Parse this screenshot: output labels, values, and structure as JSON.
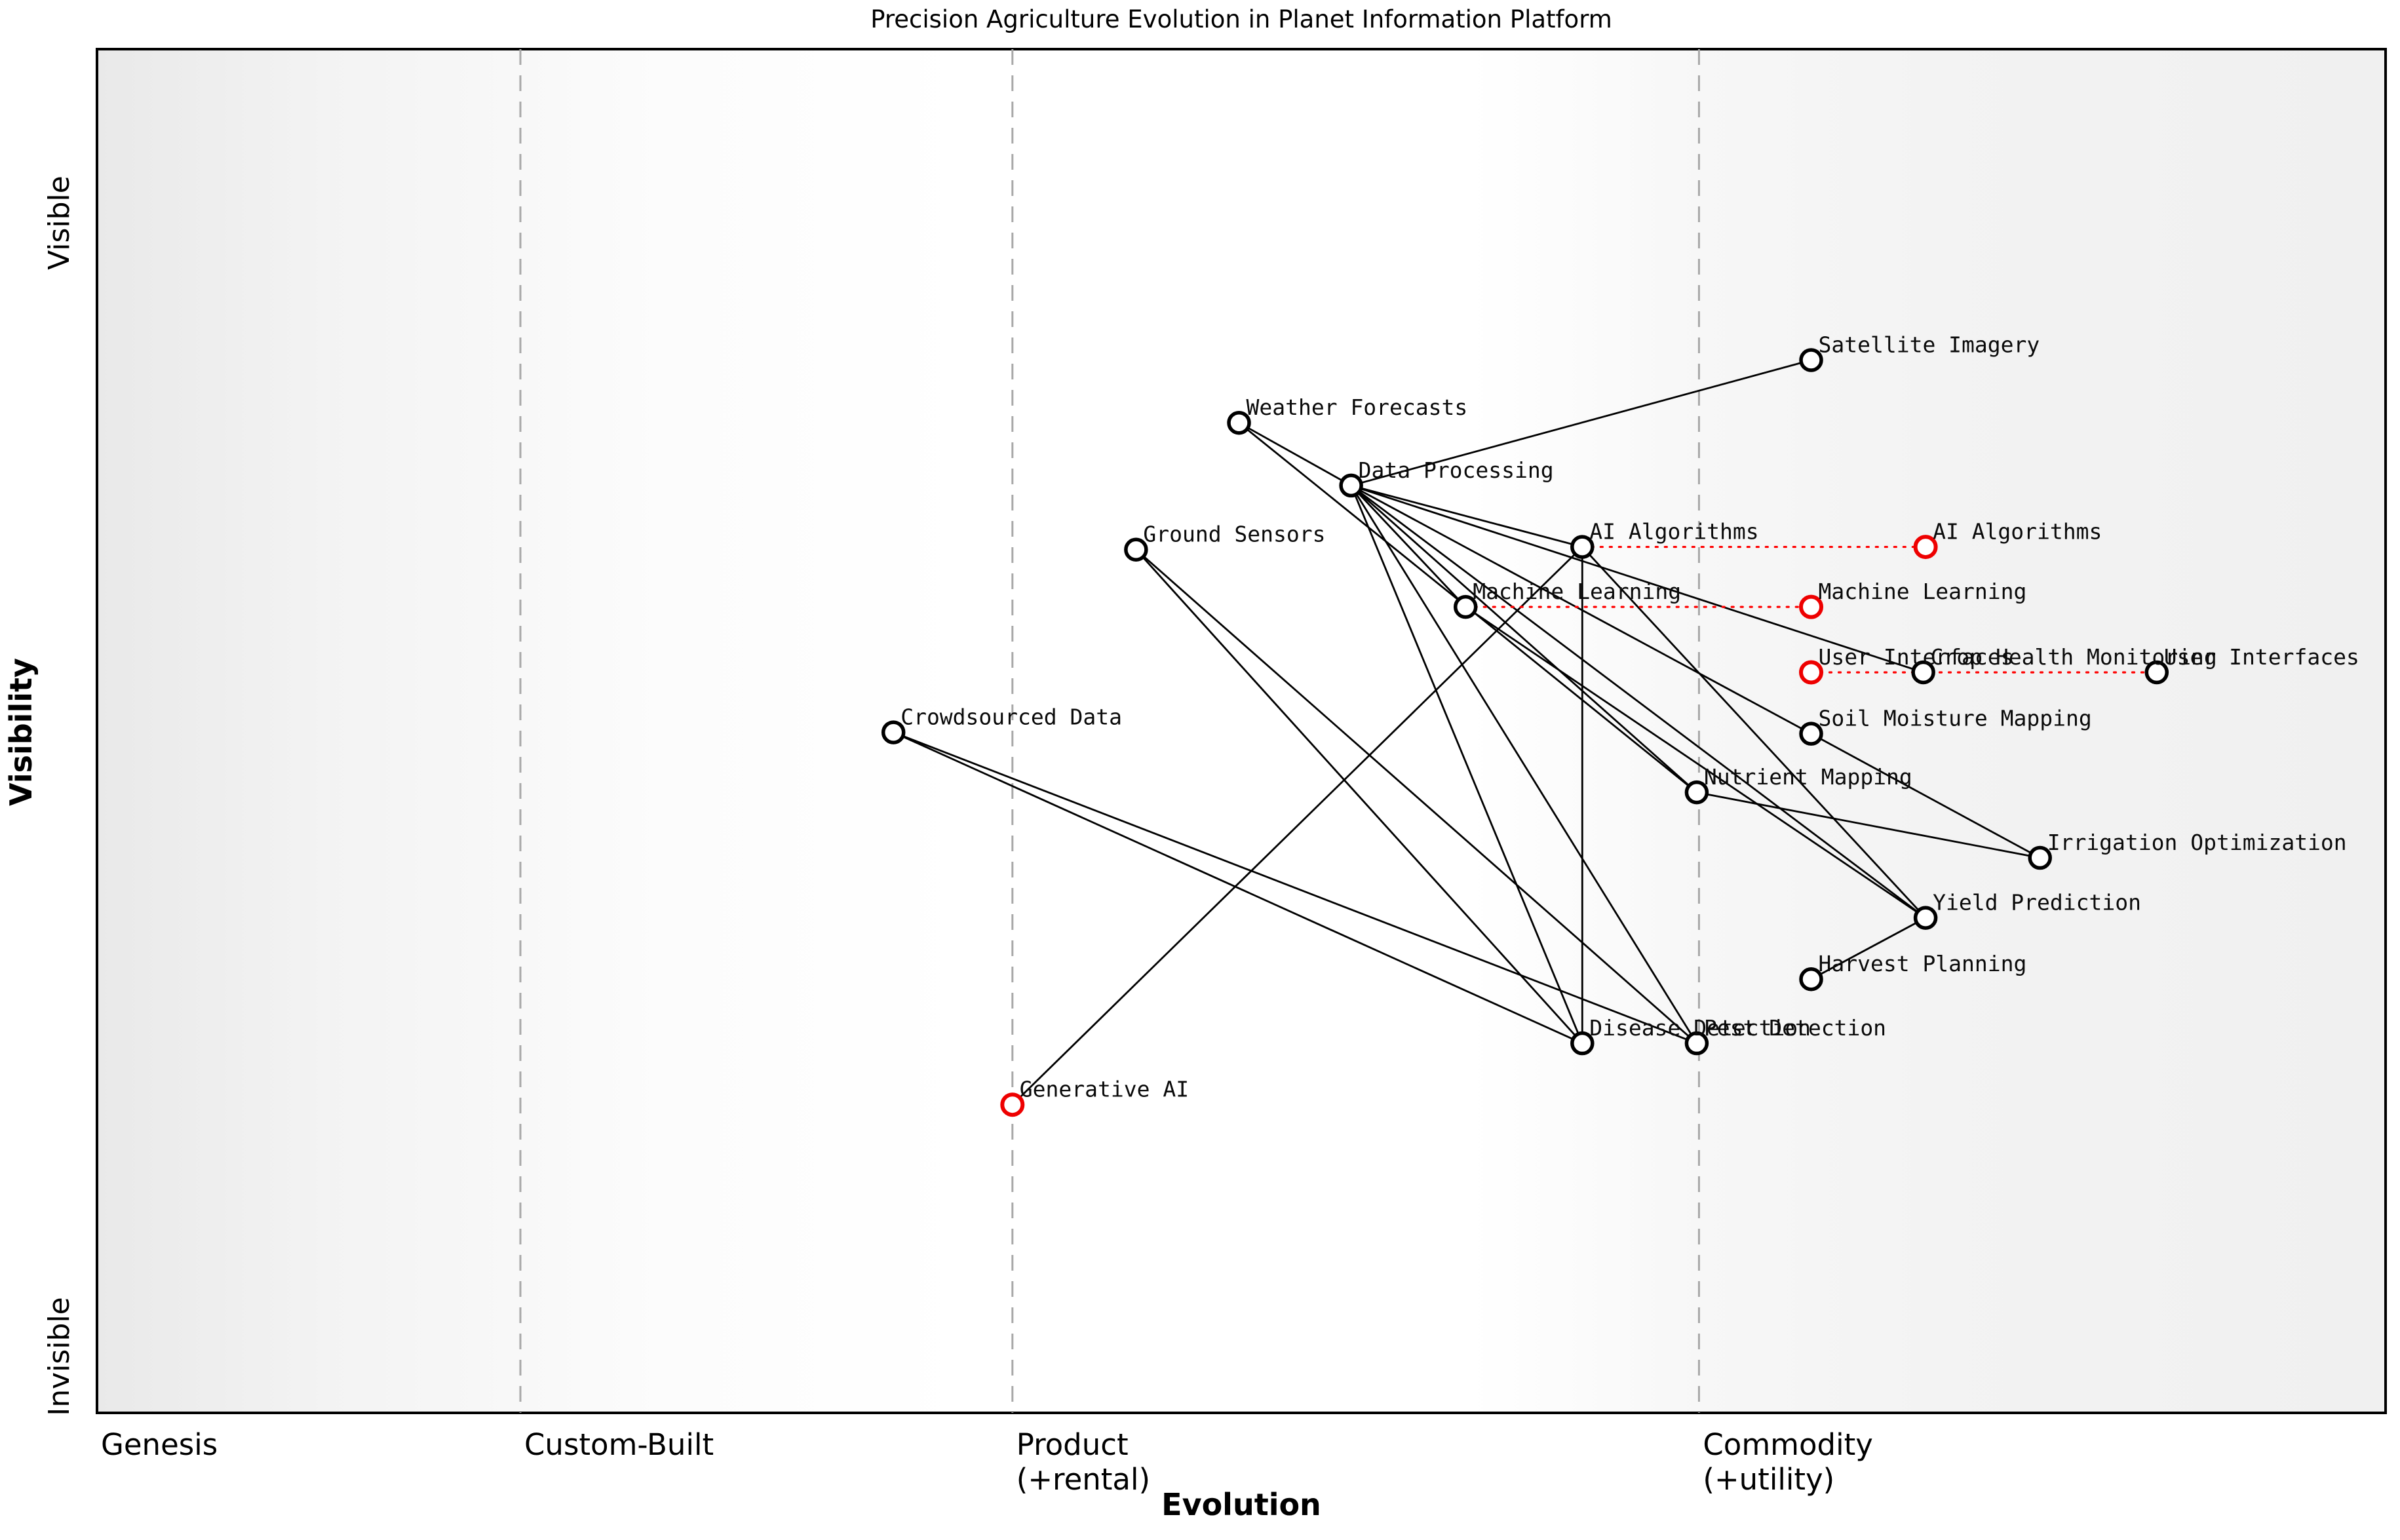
{
  "title": "Precision Agriculture Evolution in Planet Information Platform",
  "axis": {
    "x_title": "Evolution",
    "y_title": "Visibility",
    "y_top_label": "Visible",
    "y_bottom_label": "Invisible"
  },
  "colors": {
    "node_current": "#000000",
    "node_evolved": "#ee0000",
    "edge": "#000000",
    "evolution_link": "#ff0000",
    "stage_boundary": "#a8a8a8",
    "plot_border": "#000000",
    "bg_edge_gray": "#ececec",
    "bg_middle": "#ffffff"
  },
  "chart_data": {
    "type": "scatter",
    "title": "Precision Agriculture Evolution in Planet Information Platform",
    "xlabel": "Evolution",
    "ylabel": "Visibility",
    "xlim": [
      0,
      1
    ],
    "ylim": [
      0,
      1
    ],
    "grid": false,
    "legend": false,
    "stages": [
      {
        "id": "genesis",
        "x": 0.0,
        "lines": [
          "Genesis"
        ]
      },
      {
        "id": "custom",
        "x": 0.185,
        "lines": [
          "Custom-Built"
        ]
      },
      {
        "id": "product",
        "x": 0.4,
        "lines": [
          "Product",
          "(+rental)"
        ]
      },
      {
        "id": "commodity",
        "x": 0.7,
        "lines": [
          "Commodity",
          "(+utility)"
        ]
      }
    ],
    "nodes": [
      {
        "id": "sat",
        "label": "Satellite Imagery",
        "x": 0.749,
        "y": 0.772,
        "type": "current"
      },
      {
        "id": "wf",
        "label": "Weather Forecasts",
        "x": 0.499,
        "y": 0.726,
        "type": "current"
      },
      {
        "id": "dp",
        "label": "Data Processing",
        "x": 0.548,
        "y": 0.68,
        "type": "current"
      },
      {
        "id": "gs",
        "label": "Ground Sensors",
        "x": 0.454,
        "y": 0.633,
        "type": "current"
      },
      {
        "id": "aia",
        "label": "AI Algorithms",
        "x": 0.649,
        "y": 0.635,
        "type": "current"
      },
      {
        "id": "aia_r",
        "label": "AI Algorithms",
        "x": 0.799,
        "y": 0.635,
        "type": "evolved"
      },
      {
        "id": "ml",
        "label": "Machine Learning",
        "x": 0.598,
        "y": 0.591,
        "type": "current"
      },
      {
        "id": "ml_r",
        "label": "Machine Learning",
        "x": 0.749,
        "y": 0.591,
        "type": "evolved"
      },
      {
        "id": "ui_r",
        "label": "User Interfaces",
        "x": 0.749,
        "y": 0.543,
        "type": "evolved"
      },
      {
        "id": "chm",
        "label": "Crop Health Monitoring",
        "x": 0.798,
        "y": 0.543,
        "type": "current"
      },
      {
        "id": "ui",
        "label": "User Interfaces",
        "x": 0.9,
        "y": 0.543,
        "type": "current"
      },
      {
        "id": "smm",
        "label": "Soil Moisture Mapping",
        "x": 0.749,
        "y": 0.498,
        "type": "current"
      },
      {
        "id": "cd",
        "label": "Crowdsourced Data",
        "x": 0.348,
        "y": 0.499,
        "type": "current"
      },
      {
        "id": "nm",
        "label": "Nutrient Mapping",
        "x": 0.699,
        "y": 0.455,
        "type": "current"
      },
      {
        "id": "io",
        "label": "Irrigation Optimization",
        "x": 0.849,
        "y": 0.407,
        "type": "current"
      },
      {
        "id": "yp",
        "label": "Yield Prediction",
        "x": 0.799,
        "y": 0.363,
        "type": "current"
      },
      {
        "id": "hp",
        "label": "Harvest Planning",
        "x": 0.749,
        "y": 0.318,
        "type": "current"
      },
      {
        "id": "dd",
        "label": "Disease Detection",
        "x": 0.649,
        "y": 0.271,
        "type": "current"
      },
      {
        "id": "pd",
        "label": "Pest Detection",
        "x": 0.699,
        "y": 0.271,
        "type": "current"
      },
      {
        "id": "gen",
        "label": "Generative AI",
        "x": 0.4,
        "y": 0.226,
        "type": "evolved"
      }
    ],
    "edges": [
      [
        "sat",
        "dp"
      ],
      [
        "wf",
        "dp"
      ],
      [
        "wf",
        "nm"
      ],
      [
        "dp",
        "aia"
      ],
      [
        "dp",
        "ml"
      ],
      [
        "dp",
        "chm"
      ],
      [
        "dp",
        "smm"
      ],
      [
        "dp",
        "nm"
      ],
      [
        "dp",
        "yp"
      ],
      [
        "dp",
        "dd"
      ],
      [
        "dp",
        "pd"
      ],
      [
        "gs",
        "dd"
      ],
      [
        "gs",
        "pd"
      ],
      [
        "cd",
        "dd"
      ],
      [
        "cd",
        "pd"
      ],
      [
        "ml",
        "yp"
      ],
      [
        "aia",
        "yp"
      ],
      [
        "aia",
        "dd"
      ],
      [
        "gen",
        "aia"
      ],
      [
        "smm",
        "io"
      ],
      [
        "nm",
        "io"
      ],
      [
        "yp",
        "hp"
      ]
    ],
    "evolution_links": [
      [
        "aia",
        "aia_r"
      ],
      [
        "ml",
        "ml_r"
      ],
      [
        "ui_r",
        "ui"
      ]
    ]
  }
}
